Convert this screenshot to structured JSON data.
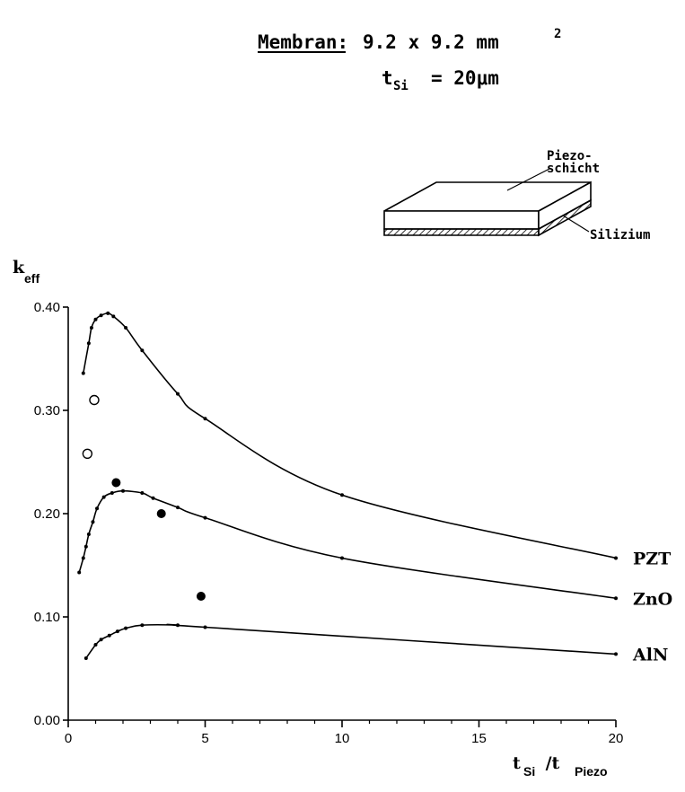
{
  "header": {
    "membrane_label": "Membran:",
    "membrane_value": "9.2 x 9.2 mm",
    "membrane_exp": "2",
    "thickness_base": "t",
    "thickness_sub": "Si",
    "thickness_value": "= 20μm"
  },
  "inset": {
    "piezo_label_line1": "Piezo-",
    "piezo_label_line2": "schicht",
    "silicon_label": "Silizium"
  },
  "chart_data": {
    "type": "line",
    "ylabel_base": "k",
    "ylabel_sub": "eff",
    "xlabel_base1": "t",
    "xlabel_sub1": "Si",
    "xlabel_mid": " /t",
    "xlabel_sub2": "Piezo",
    "xlim": [
      0,
      20
    ],
    "ylim": [
      0,
      0.4
    ],
    "xticks": [
      "0",
      "5",
      "10",
      "15",
      "20"
    ],
    "yticks": [
      "0.00",
      "0.10",
      "0.20",
      "0.30",
      "0.40"
    ],
    "grid": false,
    "series": [
      {
        "name": "PZT",
        "x": [
          0.55,
          0.75,
          0.85,
          1.0,
          1.2,
          1.45,
          1.65,
          2.1,
          2.7,
          4.0,
          5.0,
          10.0,
          20.0
        ],
        "y": [
          0.336,
          0.365,
          0.38,
          0.388,
          0.392,
          0.394,
          0.391,
          0.38,
          0.358,
          0.316,
          0.292,
          0.218,
          0.157
        ]
      },
      {
        "name": "ZnO",
        "x": [
          0.4,
          0.55,
          0.65,
          0.75,
          0.9,
          1.05,
          1.3,
          1.6,
          2.0,
          2.7,
          3.1,
          4.0,
          5.0,
          10.0,
          20.0
        ],
        "y": [
          0.143,
          0.157,
          0.168,
          0.18,
          0.192,
          0.205,
          0.216,
          0.22,
          0.222,
          0.22,
          0.215,
          0.206,
          0.196,
          0.157,
          0.118
        ]
      },
      {
        "name": "AlN",
        "x": [
          0.65,
          1.0,
          1.2,
          1.5,
          1.8,
          2.1,
          2.7,
          4.0,
          5.0,
          20.0
        ],
        "y": [
          0.06,
          0.073,
          0.078,
          0.082,
          0.086,
          0.089,
          0.092,
          0.092,
          0.09,
          0.064
        ]
      }
    ],
    "measured_open": {
      "x": [
        0.7,
        0.95
      ],
      "y": [
        0.258,
        0.31
      ]
    },
    "measured_filled": {
      "x": [
        1.75,
        3.4,
        4.85
      ],
      "y": [
        0.23,
        0.2,
        0.12
      ]
    }
  }
}
